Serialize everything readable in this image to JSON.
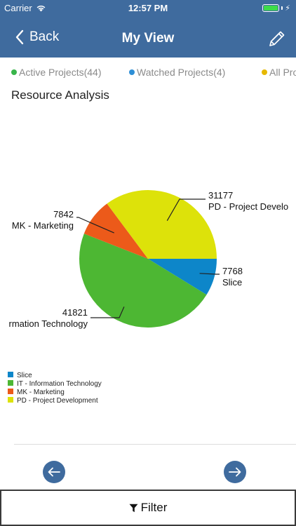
{
  "status_bar": {
    "carrier": "Carrier",
    "time": "12:57 PM"
  },
  "nav": {
    "back_label": "Back",
    "title": "My View"
  },
  "tabs": [
    {
      "label": "Active Projects(44)",
      "color": "#39b54a"
    },
    {
      "label": "Watched Projects(4)",
      "color": "#2e8fd6"
    },
    {
      "label": "All Pro",
      "color": "#e6b800"
    }
  ],
  "section_title": "Resource Analysis",
  "chart_data": {
    "type": "pie",
    "title": "",
    "slices": [
      {
        "label": "Slice",
        "value": 7768,
        "color": "#0d86c9"
      },
      {
        "label": "IT - Information Technology",
        "value": 41821,
        "color": "#4db733"
      },
      {
        "label": "MK - Marketing",
        "value": 7842,
        "color": "#ec5a1a"
      },
      {
        "label": "PD - Project Development",
        "value": 31177,
        "color": "#dde20a"
      }
    ],
    "callouts": [
      {
        "value": "31177",
        "label": "PD - Project Develo"
      },
      {
        "value": "7768",
        "label": "Slice"
      },
      {
        "value": "41821",
        "label": "rmation Technology"
      },
      {
        "value": "7842",
        "label": "MK - Marketing"
      }
    ],
    "legend": {
      "placement": "bottom-left",
      "entries": [
        "Slice",
        "IT - Information Technology",
        "MK - Marketing",
        "PD - Project Development"
      ]
    }
  },
  "footer": {
    "filter_label": "Filter"
  }
}
